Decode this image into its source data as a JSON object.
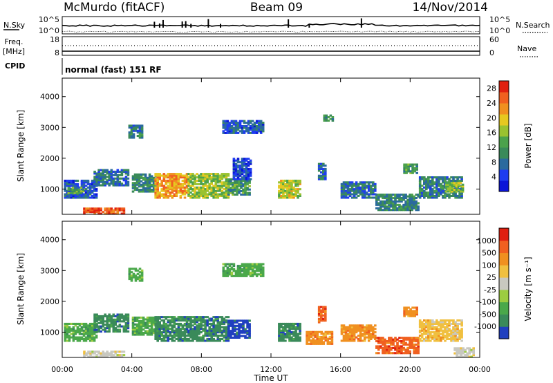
{
  "header": {
    "station": "McMurdo (fitACF)",
    "beam": "Beam 09",
    "date": "14/Nov/2014"
  },
  "top_panels": {
    "nsky_label": "N.Sky",
    "nsky_ticks": [
      "10^5",
      "10^0"
    ],
    "nsearch_label": "N.Search",
    "nsearch_ticks": [
      "10^5",
      "10^0"
    ],
    "freq_label": [
      "Freq.",
      "[MHz]"
    ],
    "freq_ticks": [
      "18",
      "8"
    ],
    "nave_label": "Nave",
    "nave_ticks": [
      "60",
      "0"
    ],
    "cpid_label": "CPID",
    "cpid_text": "normal (fast) 151 RF"
  },
  "chart_data": [
    {
      "type": "heatmap",
      "name": "power",
      "ylabel": "Slant Range [km]",
      "xlabel": "",
      "ylim": [
        180,
        4600
      ],
      "xlim": [
        "00:00",
        "24:00"
      ],
      "y_ticks": [
        "4000",
        "3000",
        "2000",
        "1000"
      ],
      "y_tick_values": [
        4000,
        3000,
        2000,
        1000
      ],
      "colorbar": {
        "label": "Power [dB]",
        "ticks": [
          "28",
          "24",
          "20",
          "16",
          "12",
          "8",
          "4"
        ],
        "tick_values": [
          28,
          24,
          20,
          16,
          12,
          8,
          4
        ],
        "range": [
          0,
          30
        ],
        "colors": [
          "#0a14d8",
          "#1e3cf0",
          "#2a6a9e",
          "#3a8a5a",
          "#4ca24c",
          "#9ac230",
          "#e6c820",
          "#f09020",
          "#f06020",
          "#e02010"
        ]
      },
      "regions": [
        {
          "t0": 0.1,
          "t1": 2.0,
          "r0": 700,
          "r1": 1300,
          "level": 6
        },
        {
          "t0": 0.3,
          "t1": 1.2,
          "r0": 850,
          "r1": 1050,
          "level": 14
        },
        {
          "t0": 1.2,
          "t1": 3.6,
          "r0": 180,
          "r1": 400,
          "level": 26
        },
        {
          "t0": 1.8,
          "t1": 3.8,
          "r0": 1100,
          "r1": 1600,
          "level": 8
        },
        {
          "t0": 3.8,
          "t1": 4.6,
          "r0": 2650,
          "r1": 3050,
          "level": 9
        },
        {
          "t0": 4.0,
          "t1": 5.4,
          "r0": 900,
          "r1": 1500,
          "level": 10
        },
        {
          "t0": 5.3,
          "t1": 7.2,
          "r0": 700,
          "r1": 1500,
          "level": 22
        },
        {
          "t0": 7.2,
          "t1": 9.5,
          "r0": 700,
          "r1": 1500,
          "level": 16
        },
        {
          "t0": 9.5,
          "t1": 10.8,
          "r0": 800,
          "r1": 1300,
          "level": 12
        },
        {
          "t0": 9.2,
          "t1": 11.5,
          "r0": 2800,
          "r1": 3200,
          "level": 6
        },
        {
          "t0": 9.8,
          "t1": 10.8,
          "r0": 1300,
          "r1": 2000,
          "level": 5
        },
        {
          "t0": 12.4,
          "t1": 13.6,
          "r0": 700,
          "r1": 1300,
          "level": 18
        },
        {
          "t0": 14.7,
          "t1": 15.1,
          "r0": 1300,
          "r1": 1800,
          "level": 8
        },
        {
          "t0": 15.0,
          "t1": 15.5,
          "r0": 3200,
          "r1": 3400,
          "level": 12
        },
        {
          "t0": 16.0,
          "t1": 18.0,
          "r0": 700,
          "r1": 1200,
          "level": 8
        },
        {
          "t0": 18.0,
          "t1": 20.5,
          "r0": 300,
          "r1": 800,
          "level": 10
        },
        {
          "t0": 20.5,
          "t1": 23.0,
          "r0": 700,
          "r1": 1400,
          "level": 9
        },
        {
          "t0": 22.0,
          "t1": 23.0,
          "r0": 900,
          "r1": 1200,
          "level": 16
        },
        {
          "t0": 19.6,
          "t1": 20.4,
          "r0": 1500,
          "r1": 1800,
          "level": 12
        }
      ]
    },
    {
      "type": "heatmap",
      "name": "velocity",
      "ylabel": "Slant Range [km]",
      "xlabel": "Time UT",
      "ylim": [
        180,
        4600
      ],
      "xlim": [
        "00:00",
        "24:00"
      ],
      "x_ticks": [
        "00:00",
        "04:00",
        "08:00",
        "12:00",
        "16:00",
        "20:00",
        "00:00"
      ],
      "x_tick_values": [
        0,
        4,
        8,
        12,
        16,
        20,
        24
      ],
      "y_ticks": [
        "4000",
        "3000",
        "2000",
        "1000"
      ],
      "y_tick_values": [
        4000,
        3000,
        2000,
        1000
      ],
      "colorbar": {
        "label": "Velocity [m s⁻¹]",
        "ticks": [
          "1000",
          "500",
          "100",
          "25",
          "-25",
          "-100",
          "-500",
          "-1000"
        ],
        "colors": [
          "#2040c0",
          "#3a8a5a",
          "#4aa84a",
          "#9ccc40",
          "#c8c8c0",
          "#f0c040",
          "#f09020",
          "#f06020",
          "#e02010"
        ]
      },
      "regions": [
        {
          "t0": 0.1,
          "t1": 2.0,
          "r0": 700,
          "r1": 1300,
          "cls": 2
        },
        {
          "t0": 1.2,
          "t1": 3.6,
          "r0": 180,
          "r1": 400,
          "cls": 4
        },
        {
          "t0": 1.8,
          "t1": 3.8,
          "r0": 1000,
          "r1": 1600,
          "cls": 1
        },
        {
          "t0": 3.8,
          "t1": 4.6,
          "r0": 2650,
          "r1": 3050,
          "cls": 2
        },
        {
          "t0": 4.0,
          "t1": 5.4,
          "r0": 900,
          "r1": 1500,
          "cls": 2
        },
        {
          "t0": 5.3,
          "t1": 7.2,
          "r0": 700,
          "r1": 1500,
          "cls": 1
        },
        {
          "t0": 7.2,
          "t1": 9.5,
          "r0": 700,
          "r1": 1500,
          "cls": 1
        },
        {
          "t0": 9.5,
          "t1": 10.8,
          "r0": 800,
          "r1": 1400,
          "cls": 0
        },
        {
          "t0": 9.2,
          "t1": 11.5,
          "r0": 2800,
          "r1": 3200,
          "cls": 2
        },
        {
          "t0": 12.4,
          "t1": 13.6,
          "r0": 700,
          "r1": 1300,
          "cls": 1
        },
        {
          "t0": 14.0,
          "t1": 15.5,
          "r0": 600,
          "r1": 1000,
          "cls": 6
        },
        {
          "t0": 14.7,
          "t1": 15.1,
          "r0": 1300,
          "r1": 1800,
          "cls": 7
        },
        {
          "t0": 16.0,
          "t1": 18.0,
          "r0": 700,
          "r1": 1200,
          "cls": 6
        },
        {
          "t0": 18.0,
          "t1": 20.5,
          "r0": 300,
          "r1": 800,
          "cls": 7
        },
        {
          "t0": 20.5,
          "t1": 23.0,
          "r0": 700,
          "r1": 1400,
          "cls": 5
        },
        {
          "t0": 19.6,
          "t1": 20.4,
          "r0": 1500,
          "r1": 1800,
          "cls": 6
        },
        {
          "t0": 22.5,
          "t1": 23.6,
          "r0": 180,
          "r1": 500,
          "cls": 4
        }
      ]
    }
  ]
}
